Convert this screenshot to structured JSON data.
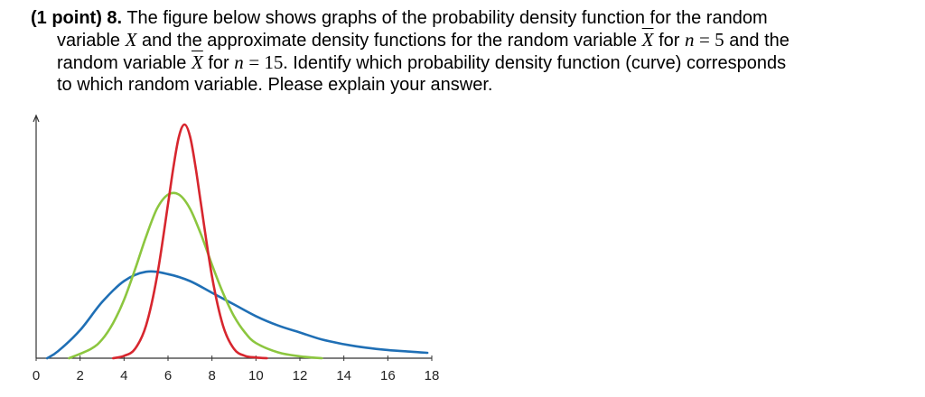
{
  "problem": {
    "points_prefix": "(1 point) 8.",
    "line1_text": "The figure below shows graphs of the probability density function for the random",
    "line2_a": "variable",
    "line2_var_x": "X",
    "line2_b": "and the approximate density functions for the random variable",
    "line2_var_xbar": "X",
    "line2_c": "for",
    "line2_n": "n",
    "line2_eq": "= 5",
    "line2_d": "and the",
    "line3_a": "random variable",
    "line3_var_xbar": "X",
    "line3_b": "for",
    "line3_n": "n",
    "line3_eq": "= 15.",
    "line3_c": "Identify which probability density function (curve) corresponds",
    "line4": "to which random variable. Please explain your answer."
  },
  "chart_data": {
    "type": "line",
    "xlim": [
      0,
      18
    ],
    "ylim": [
      0,
      1
    ],
    "x_tick_labels": [
      "0",
      "2",
      "4",
      "6",
      "8",
      "10",
      "12",
      "14",
      "16",
      "18"
    ],
    "x_ticks": [
      0,
      2,
      4,
      6,
      8,
      10,
      12,
      14,
      16,
      18
    ],
    "grid": false,
    "series": [
      {
        "color": "#1f6fb5",
        "x": [
          0.5,
          1,
          2,
          3,
          4,
          5,
          6,
          7,
          8,
          9,
          10,
          11,
          12,
          13,
          14,
          15,
          16,
          17,
          17.8
        ],
        "y": [
          0.0,
          0.03,
          0.12,
          0.24,
          0.33,
          0.37,
          0.36,
          0.33,
          0.28,
          0.23,
          0.18,
          0.14,
          0.11,
          0.08,
          0.06,
          0.045,
          0.035,
          0.028,
          0.023
        ]
      },
      {
        "color": "#8cc63f",
        "x": [
          1.5,
          2.5,
          3,
          3.5,
          4,
          4.5,
          5,
          5.5,
          6,
          6.5,
          7,
          7.5,
          8,
          8.5,
          9,
          9.5,
          10,
          11,
          12,
          13
        ],
        "y": [
          0.0,
          0.04,
          0.08,
          0.15,
          0.25,
          0.38,
          0.52,
          0.64,
          0.7,
          0.7,
          0.64,
          0.53,
          0.4,
          0.28,
          0.18,
          0.11,
          0.065,
          0.025,
          0.008,
          0.0
        ]
      },
      {
        "color": "#d7262e",
        "x": [
          3.5,
          4,
          4.5,
          5,
          5.5,
          6,
          6.25,
          6.5,
          6.75,
          7,
          7.25,
          7.5,
          8,
          8.5,
          9,
          9.5,
          10,
          10.5
        ],
        "y": [
          0.0,
          0.01,
          0.04,
          0.14,
          0.35,
          0.66,
          0.82,
          0.95,
          1.0,
          0.95,
          0.82,
          0.66,
          0.35,
          0.14,
          0.04,
          0.01,
          0.003,
          0.0
        ]
      }
    ]
  }
}
